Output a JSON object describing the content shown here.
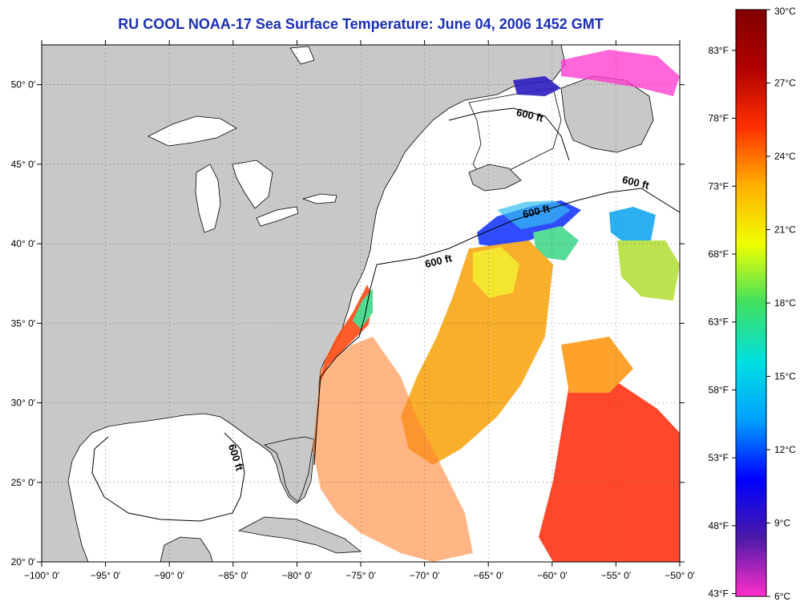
{
  "title": "RU COOL  NOAA-17  Sea Surface Temperature:  June 04, 2006 1452 GMT",
  "map": {
    "lon_range": [
      -100,
      -50
    ],
    "lat_range": [
      20,
      52.5
    ],
    "lon_ticks": [
      {
        "value": -100,
        "label": "−100° 0′"
      },
      {
        "value": -95,
        "label": "−95° 0′"
      },
      {
        "value": -90,
        "label": "−90° 0′"
      },
      {
        "value": -85,
        "label": "−85° 0′"
      },
      {
        "value": -80,
        "label": "−80° 0′"
      },
      {
        "value": -75,
        "label": "−75° 0′"
      },
      {
        "value": -70,
        "label": "−70° 0′"
      },
      {
        "value": -65,
        "label": "−65° 0′"
      },
      {
        "value": -60,
        "label": "−60° 0′"
      },
      {
        "value": -55,
        "label": "−55° 0′"
      },
      {
        "value": -50,
        "label": "−50° 0′"
      }
    ],
    "lat_ticks": [
      {
        "value": 20,
        "label": "20° 0′"
      },
      {
        "value": 25,
        "label": "25° 0′"
      },
      {
        "value": 30,
        "label": "30° 0′"
      },
      {
        "value": 35,
        "label": "35° 0′"
      },
      {
        "value": 40,
        "label": "40° 0′"
      },
      {
        "value": 45,
        "label": "45° 0′"
      },
      {
        "value": 50,
        "label": "50° 0′"
      }
    ],
    "contour_labels": [
      {
        "text": "600 ft"
      },
      {
        "text": "600 ft"
      },
      {
        "text": "600 ft"
      },
      {
        "text": "600 ft"
      },
      {
        "text": "600 ft"
      }
    ],
    "colors": {
      "land": "#c8c8c8",
      "water": "#ffffff",
      "grid": "#555555"
    }
  },
  "colorbar": {
    "celsius": [
      {
        "value": 30,
        "label": "30°C"
      },
      {
        "value": 27,
        "label": "27°C"
      },
      {
        "value": 24,
        "label": "24°C"
      },
      {
        "value": 21,
        "label": "21°C"
      },
      {
        "value": 18,
        "label": "18°C"
      },
      {
        "value": 15,
        "label": "15°C"
      },
      {
        "value": 12,
        "label": "12°C"
      },
      {
        "value": 9,
        "label": "9°C"
      },
      {
        "value": 6,
        "label": "6°C"
      }
    ],
    "fahrenheit": [
      {
        "value": 83,
        "label": "83°F"
      },
      {
        "value": 78,
        "label": "78°F"
      },
      {
        "value": 73,
        "label": "73°F"
      },
      {
        "value": 68,
        "label": "68°F"
      },
      {
        "value": 63,
        "label": "63°F"
      },
      {
        "value": 58,
        "label": "58°F"
      },
      {
        "value": 53,
        "label": "53°F"
      },
      {
        "value": 48,
        "label": "48°F"
      },
      {
        "value": 43,
        "label": "43°F"
      }
    ],
    "range_c": [
      6,
      30
    ],
    "gradient_colors": [
      "#ff2ec8",
      "#4a1aa8",
      "#0000ff",
      "#00a0ff",
      "#00e0e0",
      "#40e060",
      "#f0ff00",
      "#ffb000",
      "#ff3000",
      "#b00000",
      "#800000"
    ]
  }
}
